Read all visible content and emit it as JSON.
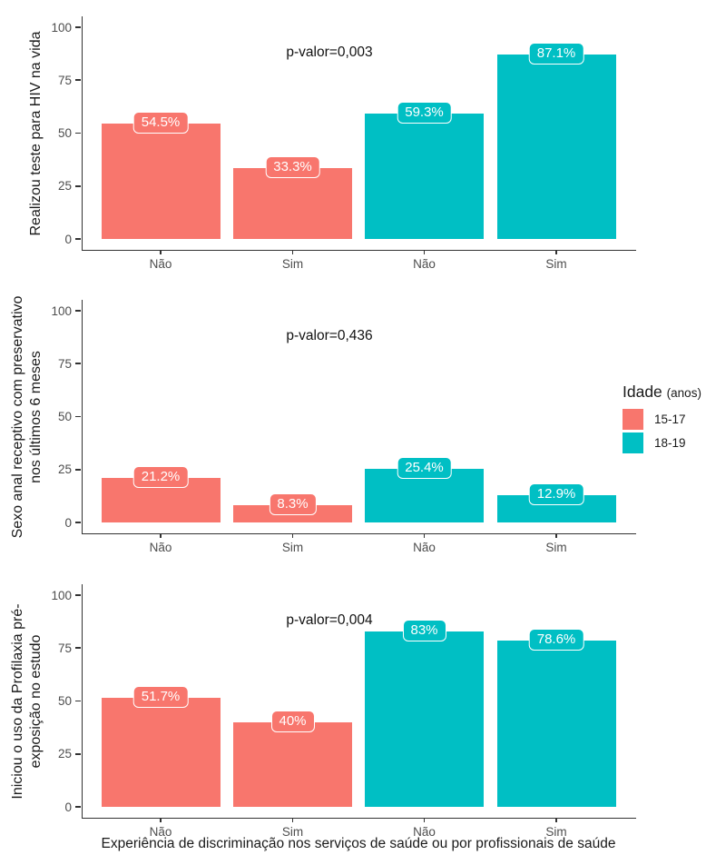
{
  "figure": {
    "xlabel": "Experiência de discriminação nos serviços de saúde ou por profissionais de saúde",
    "legend": {
      "title": "Idade",
      "title_suffix": "(anos)",
      "position": "right-middle",
      "entries": [
        {
          "label": "15-17",
          "color": "#F8766D"
        },
        {
          "label": "18-19",
          "color": "#00BFC4"
        }
      ]
    }
  },
  "colors": {
    "15-17": "#F8766D",
    "18-19": "#00BFC4",
    "axis": "#333333",
    "tick_text": "#4d4d4d",
    "text": "#1a1a1a",
    "label_text": "#ffffff"
  },
  "chart_data": [
    {
      "type": "bar",
      "ylabel": "Realizou teste para HIV na vida",
      "ylabel_lines": [
        "Realizou teste para HIV na vida"
      ],
      "annotation": "p-valor=0,003",
      "categories": [
        "Não",
        "Sim",
        "Não",
        "Sim"
      ],
      "groups": [
        "15-17",
        "15-17",
        "18-19",
        "18-19"
      ],
      "values": [
        54.5,
        33.3,
        59.3,
        87.1
      ],
      "labels": [
        "54.5%",
        "33.3%",
        "59.3%",
        "87.1%"
      ],
      "ylim": [
        0,
        100
      ],
      "yticks": [
        0,
        25,
        50,
        75,
        100
      ],
      "grid": false,
      "legend_position": "none"
    },
    {
      "type": "bar",
      "ylabel": "Sexo anal receptivo com preservativo nos últimos 6 meses",
      "ylabel_lines": [
        "Sexo anal receptivo com preservativo",
        "nos últimos 6 meses"
      ],
      "annotation": "p-valor=0,436",
      "categories": [
        "Não",
        "Sim",
        "Não",
        "Sim"
      ],
      "groups": [
        "15-17",
        "15-17",
        "18-19",
        "18-19"
      ],
      "values": [
        21.2,
        8.3,
        25.4,
        12.9
      ],
      "labels": [
        "21.2%",
        "8.3%",
        "25.4%",
        "12.9%"
      ],
      "ylim": [
        0,
        100
      ],
      "yticks": [
        0,
        25,
        50,
        75,
        100
      ],
      "grid": false,
      "legend_position": "right"
    },
    {
      "type": "bar",
      "ylabel": "Iniciou o uso da Profilaxia pré-exposição no estudo",
      "ylabel_lines": [
        "Iniciou o uso da Profilaxia pré-",
        "exposição no estudo"
      ],
      "annotation": "p-valor=0,004",
      "categories": [
        "Não",
        "Sim",
        "Não",
        "Sim"
      ],
      "groups": [
        "15-17",
        "15-17",
        "18-19",
        "18-19"
      ],
      "values": [
        51.7,
        40,
        83,
        78.6
      ],
      "labels": [
        "51.7%",
        "40%",
        "83%",
        "78.6%"
      ],
      "ylim": [
        0,
        100
      ],
      "yticks": [
        0,
        25,
        50,
        75,
        100
      ],
      "grid": false,
      "legend_position": "none"
    }
  ]
}
